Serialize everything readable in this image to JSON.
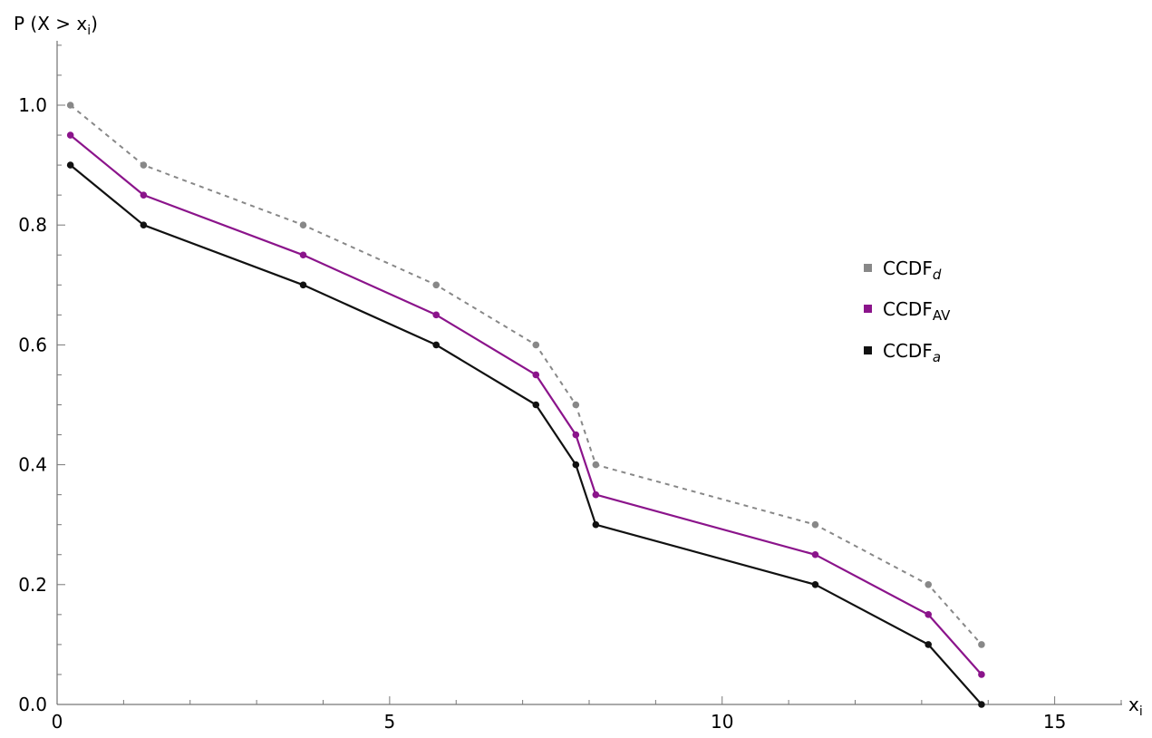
{
  "chart_data": {
    "type": "line",
    "title": "",
    "xlabel": "x",
    "xlabel_sub": "i",
    "ylabel": "P (X > x",
    "ylabel_sub": "i",
    "ylabel_close": ")",
    "xlim": [
      0,
      16
    ],
    "ylim": [
      0,
      1.1
    ],
    "x_ticks": [
      0,
      5,
      10,
      15
    ],
    "x_tick_labels": [
      "0",
      "5",
      "10",
      "15"
    ],
    "y_ticks": [
      0.0,
      0.2,
      0.4,
      0.6,
      0.8,
      1.0
    ],
    "y_tick_labels": [
      "0.0",
      "0.2",
      "0.4",
      "0.6",
      "0.8",
      "1.0"
    ],
    "grid": false,
    "legend_position": "right",
    "x": [
      0.2,
      1.3,
      3.7,
      5.7,
      7.2,
      7.8,
      8.1,
      11.4,
      13.1,
      13.9
    ],
    "series": [
      {
        "name": "CCDF",
        "name_sub": "d",
        "sub_italic": true,
        "color": "#888888",
        "dashed": true,
        "values": [
          1.0,
          0.9,
          0.8,
          0.7,
          0.6,
          0.5,
          0.4,
          0.3,
          0.2,
          0.1
        ]
      },
      {
        "name": "CCDF",
        "name_sub": "AV",
        "sub_italic": false,
        "color": "#8b148b",
        "dashed": false,
        "values": [
          0.95,
          0.85,
          0.75,
          0.65,
          0.55,
          0.45,
          0.35,
          0.25,
          0.15,
          0.05
        ]
      },
      {
        "name": "CCDF",
        "name_sub": "a",
        "sub_italic": true,
        "color": "#111111",
        "dashed": false,
        "values": [
          0.9,
          0.8,
          0.7,
          0.6,
          0.5,
          0.4,
          0.3,
          0.2,
          0.1,
          0.0
        ]
      }
    ]
  }
}
